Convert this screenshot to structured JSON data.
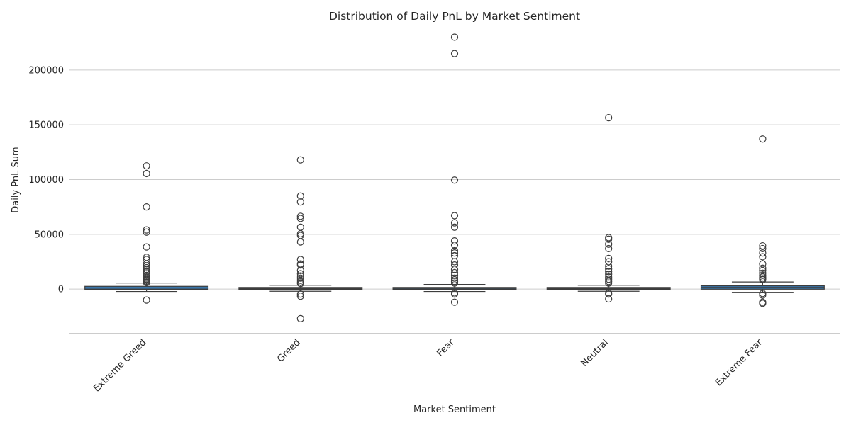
{
  "chart_data": {
    "type": "box",
    "title": "Distribution of Daily PnL by Market Sentiment",
    "xlabel": "Market Sentiment",
    "ylabel": "Daily PnL Sum",
    "ylim": [
      -40000,
      240000
    ],
    "yticks": [
      0,
      50000,
      100000,
      150000,
      200000
    ],
    "grid": true,
    "box_color": "#3a75a8",
    "categories": [
      "Extreme Greed",
      "Greed",
      "Fear",
      "Neutral",
      "Extreme Fear"
    ],
    "boxes": [
      {
        "category": "Extreme Greed",
        "whisker_low": -2200,
        "q1": -200,
        "median": 1000,
        "q3": 2500,
        "whisker_high": 5500,
        "outliers": [
          112500,
          105500,
          75000,
          54000,
          52000,
          38500,
          29000,
          27000,
          23000,
          21000,
          19500,
          18000,
          16000,
          14000,
          12500,
          11000,
          10000,
          9000,
          8000,
          7000,
          6000,
          -10000
        ]
      },
      {
        "category": "Greed",
        "whisker_low": -2000,
        "q1": -200,
        "median": 400,
        "q3": 1500,
        "whisker_high": 3500,
        "outliers": [
          118000,
          85000,
          79500,
          66500,
          64500,
          56500,
          50500,
          49000,
          43000,
          27000,
          23000,
          22000,
          17000,
          14000,
          12000,
          10000,
          8000,
          6500,
          5000,
          -4500,
          -6500,
          -27000
        ]
      },
      {
        "category": "Fear",
        "whisker_low": -2200,
        "q1": -300,
        "median": 300,
        "q3": 1500,
        "whisker_high": 4200,
        "outliers": [
          230000,
          215000,
          99500,
          67000,
          60500,
          56500,
          44000,
          40000,
          35000,
          33000,
          30500,
          25000,
          22000,
          18000,
          15000,
          12500,
          10000,
          8500,
          7000,
          5500,
          -3500,
          -4500,
          -12000
        ]
      },
      {
        "category": "Neutral",
        "whisker_low": -2000,
        "q1": -200,
        "median": 400,
        "q3": 1500,
        "whisker_high": 3500,
        "outliers": [
          156500,
          47000,
          45500,
          41000,
          37000,
          28000,
          25000,
          21000,
          18500,
          16000,
          13500,
          11000,
          9000,
          7000,
          5500,
          -3500,
          -4500,
          -9000
        ]
      },
      {
        "category": "Extreme Fear",
        "whisker_low": -3000,
        "q1": -100,
        "median": 1500,
        "q3": 3000,
        "whisker_high": 6500,
        "outliers": [
          137000,
          39500,
          37000,
          33000,
          29500,
          23000,
          19000,
          17000,
          14500,
          12500,
          11000,
          9500,
          8500,
          -4000,
          -5500,
          -12000,
          -13000
        ]
      }
    ]
  }
}
